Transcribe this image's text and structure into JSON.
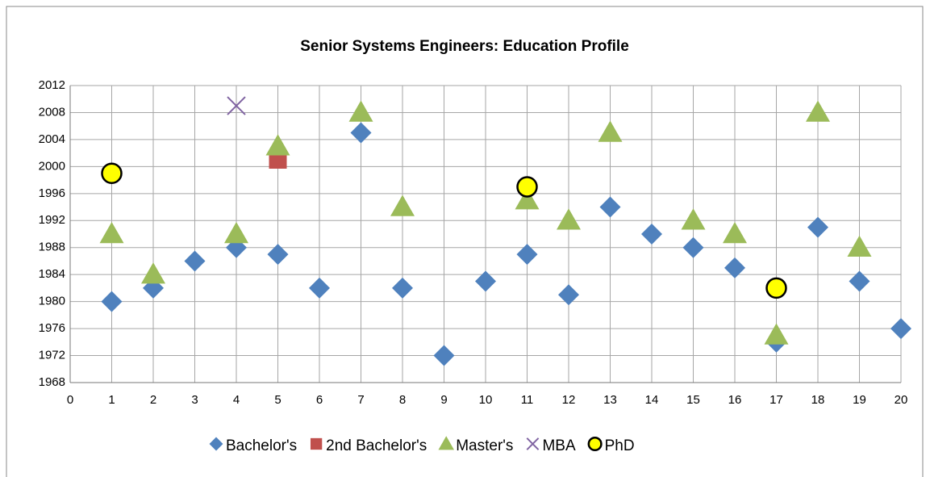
{
  "chart_data": {
    "type": "scatter",
    "title": "Senior Systems Engineers: Education Profile",
    "xlim": [
      0,
      20
    ],
    "xticks": [
      0,
      1,
      2,
      3,
      4,
      5,
      6,
      7,
      8,
      9,
      10,
      11,
      12,
      13,
      14,
      15,
      16,
      17,
      18,
      19,
      20
    ],
    "ylim": [
      1968,
      2012
    ],
    "yticks": [
      1968,
      1972,
      1976,
      1980,
      1984,
      1988,
      1992,
      1996,
      2000,
      2004,
      2008,
      2012
    ],
    "grid": true,
    "legend": "bottom",
    "series": [
      {
        "name": "Bachelor's",
        "color": "#4f81bd",
        "marker": "diamond",
        "x": [
          1,
          2,
          3,
          4,
          5,
          6,
          7,
          8,
          9,
          10,
          11,
          12,
          13,
          14,
          15,
          16,
          17,
          18,
          19,
          20
        ],
        "values": [
          1980,
          1982,
          1986,
          1988,
          1987,
          1982,
          2005,
          1982,
          1972,
          1983,
          1987,
          1981,
          1994,
          1990,
          1988,
          1985,
          1974,
          1991,
          1983,
          1976
        ]
      },
      {
        "name": "2nd Bachelor's",
        "color": "#c0504d",
        "marker": "square",
        "x": [
          5
        ],
        "values": [
          2001
        ]
      },
      {
        "name": "Master's",
        "color": "#9bbb59",
        "marker": "triangle",
        "x": [
          1,
          2,
          4,
          5,
          7,
          8,
          11,
          12,
          13,
          15,
          16,
          17,
          18,
          19
        ],
        "values": [
          1990,
          1984,
          1990,
          2003,
          2008,
          1994,
          1995,
          1992,
          2005,
          1992,
          1990,
          1975,
          2008,
          1988
        ]
      },
      {
        "name": "MBA",
        "color": "#8064a2",
        "marker": "x",
        "x": [
          4
        ],
        "values": [
          2009
        ]
      },
      {
        "name": "PhD",
        "color": "#ffff00",
        "marker": "circle",
        "x": [
          1,
          11,
          17
        ],
        "values": [
          1999,
          1997,
          1982
        ]
      }
    ]
  }
}
